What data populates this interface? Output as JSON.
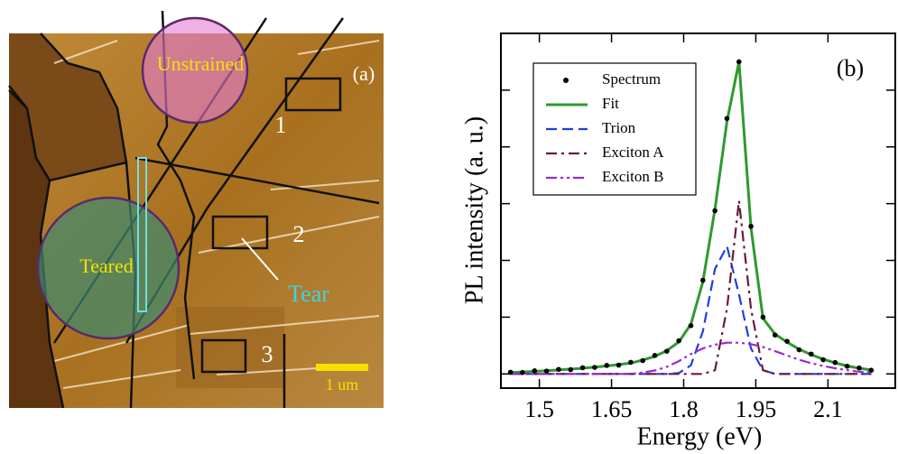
{
  "figure_a": {
    "panel_label": "(a)",
    "regions": [
      "Unstrained",
      "Teared"
    ],
    "boxes": [
      "1",
      "2",
      "3"
    ],
    "tear": "Tear",
    "scale_bar": "1 um"
  },
  "chart_data": {
    "type": "line",
    "panel_label": "(b)",
    "x_label": "Energy (eV)",
    "y_label": "PL intensity (a. u.)",
    "xlim": [
      1.42,
      2.24
    ],
    "xticks": [
      1.5,
      1.65,
      1.8,
      1.95,
      2.1
    ],
    "ylim": [
      -0.05,
      1.2
    ],
    "yticks": [
      0,
      0.2,
      0.4,
      0.6,
      0.8,
      1.0
    ],
    "legend": "upper left",
    "x": [
      1.44,
      1.465,
      1.49,
      1.515,
      1.54,
      1.565,
      1.59,
      1.615,
      1.64,
      1.665,
      1.69,
      1.715,
      1.74,
      1.765,
      1.79,
      1.815,
      1.84,
      1.865,
      1.89,
      1.915,
      1.94,
      1.965,
      1.99,
      2.015,
      2.04,
      2.065,
      2.09,
      2.115,
      2.14,
      2.165,
      2.19
    ],
    "series": [
      {
        "name": "Spectrum",
        "color": "#000000",
        "style": "markers",
        "values": [
          0.006,
          0.005,
          0.011,
          0.01,
          0.016,
          0.015,
          0.022,
          0.023,
          0.03,
          0.031,
          0.041,
          0.047,
          0.065,
          0.08,
          0.117,
          0.17,
          0.33,
          0.575,
          0.9,
          1.1,
          0.52,
          0.2,
          0.137,
          0.115,
          0.085,
          0.07,
          0.05,
          0.04,
          0.027,
          0.021,
          0.013
        ]
      },
      {
        "name": "Fit",
        "color": "#2e9a2e",
        "style": "solid",
        "values": [
          0.005,
          0.007,
          0.009,
          0.011,
          0.014,
          0.017,
          0.02,
          0.024,
          0.028,
          0.033,
          0.038,
          0.049,
          0.062,
          0.082,
          0.113,
          0.175,
          0.325,
          0.581,
          0.89,
          1.1,
          0.515,
          0.196,
          0.14,
          0.112,
          0.087,
          0.068,
          0.052,
          0.039,
          0.028,
          0.02,
          0.014
        ]
      },
      {
        "name": "Trion",
        "color": "#1f3fe0",
        "style": "dashed",
        "values": [
          0,
          0,
          0,
          0,
          0,
          0,
          0,
          0,
          0,
          0,
          0,
          0,
          0,
          0,
          0.003,
          0.03,
          0.15,
          0.37,
          0.45,
          0.28,
          0.09,
          0.013,
          0,
          0,
          0,
          0,
          0,
          0,
          0,
          0,
          0
        ]
      },
      {
        "name": "Exciton A",
        "color": "#6a1a3a",
        "style": "dashdot",
        "values": [
          0,
          0,
          0,
          0,
          0,
          0,
          0,
          0,
          0,
          0,
          0,
          0,
          0,
          0,
          0,
          0,
          0,
          0.013,
          0.23,
          0.61,
          0.23,
          0.013,
          0,
          0,
          0,
          0,
          0,
          0,
          0,
          0,
          0
        ]
      },
      {
        "name": "Exciton B",
        "color": "#9a2ad0",
        "style": "dashdotdot",
        "values": [
          0,
          0,
          0,
          0,
          0,
          0,
          0,
          0,
          0,
          0,
          0,
          0.005,
          0.012,
          0.025,
          0.045,
          0.07,
          0.09,
          0.103,
          0.11,
          0.11,
          0.105,
          0.095,
          0.08,
          0.065,
          0.05,
          0.038,
          0.028,
          0.02,
          0.013,
          0.008,
          0.005
        ]
      }
    ]
  }
}
